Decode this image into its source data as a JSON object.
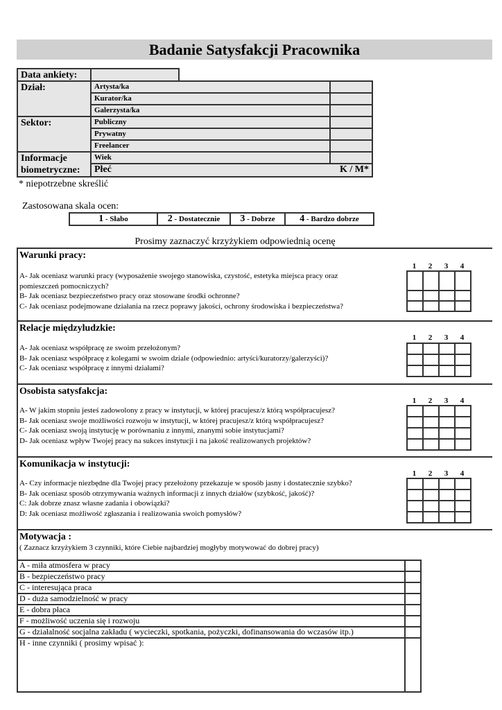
{
  "title": "Badanie  Satysfakcji  Pracownika",
  "info": {
    "date_label": "Data ankiety:",
    "dept_label": "Dział:",
    "dept_options": [
      "Artysta/ka",
      "Kurator/ka",
      "Galerzysta/ka"
    ],
    "sector_label": "Sektor:",
    "sector_options": [
      "Publiczny",
      "Prywatny",
      "Freelancer"
    ],
    "bio_label_1": "Informacje",
    "bio_label_2": "biometryczne:",
    "age_label": "Wiek",
    "sex_label": "Płeć",
    "sex_options": "K / M*"
  },
  "footnote": "* niepotrzebne skreślić",
  "scale": {
    "label": "Zastosowana skala ocen:",
    "items": [
      {
        "n": "1",
        "t": " - Słabo"
      },
      {
        "n": "2",
        "t": " - Dostatecznie"
      },
      {
        "n": "3",
        "t": " - Dobrze"
      },
      {
        "n": "4",
        "t": " - Bardzo dobrze"
      }
    ]
  },
  "instruction": "Prosimy zaznaczyć krzyżykiem odpowiednią ocenę",
  "rating_numbers": [
    "1",
    "2",
    "3",
    "4"
  ],
  "sections": [
    {
      "title": "Warunki  pracy:",
      "questions": [
        "A- Jak oceniasz warunki pracy (wyposażenie swojego stanowiska, czystość, estetyka miejsca pracy oraz",
        "pomieszczeń  pomocniczych?",
        "B- Jak oceniasz  bezpieczeństwo pracy oraz stosowane środki ochronne?",
        "C- Jak oceniasz  podejmowane działania  na rzecz  poprawy jakości, ochrony środowiska i bezpieczeństwa?"
      ]
    },
    {
      "title": "Relacje międzyludzkie:",
      "questions": [
        "A- Jak oceniasz  współpracę ze swoim przełożonym?",
        "B- Jak  oceniasz współpracę z kolegami w swoim dziale (odpowiednio: artyści/kuratorzy/galerzyści)?",
        "C- Jak oceniasz współpracę z innymi działami?"
      ]
    },
    {
      "title": "Osobista satysfakcja:",
      "questions": [
        "A- W jakim stopniu jesteś zadowolony z pracy w instytucji, w której pracujesz/z którą współpracujesz?",
        "B- Jak oceniasz swoje możliwości rozwoju w instytucji, w której pracujesz/z którą współpracujesz?",
        "C- Jak oceniasz  swoją instytucję w porównaniu z innymi, znanymi sobie instytucjami?",
        "D- Jak oceniasz  wpływ Twojej pracy na sukces instytucji i  na jakość realizowanych projektów?"
      ]
    },
    {
      "title": "Komunikacja w instytucji:",
      "questions": [
        "A- Czy informacje niezbędne dla Twojej pracy przełożony przekazuje w sposób jasny i dostatecznie szybko?",
        "B- Jak oceniasz sposób otrzymywania ważnych informacji z innych działów (szybkość, jakość)?",
        "C: Jak dobrze znasz własne zadania i obowiązki?",
        "D: Jak oceniasz możliwość zgłaszania i realizowania swoich pomysłów?"
      ]
    }
  ],
  "motivation": {
    "title": "Motywacja :",
    "note": "( Zaznacz  krzyżykiem  3 czynniki,  które Ciebie najbardziej mogłyby motywować do dobrej pracy)",
    "items": [
      "A - miła atmosfera w pracy",
      "B - bezpieczeństwo pracy",
      "C - interesująca praca",
      "D - duża samodzielność w pracy",
      "E - dobra płaca",
      "F - możliwość uczenia się i rozwoju",
      "G - działalność socjalna zakładu ( wycieczki, spotkania, pożyczki, dofinansowania do wczasów  itp.)",
      "H - inne czynniki  ( prosimy wpisać ):"
    ]
  }
}
